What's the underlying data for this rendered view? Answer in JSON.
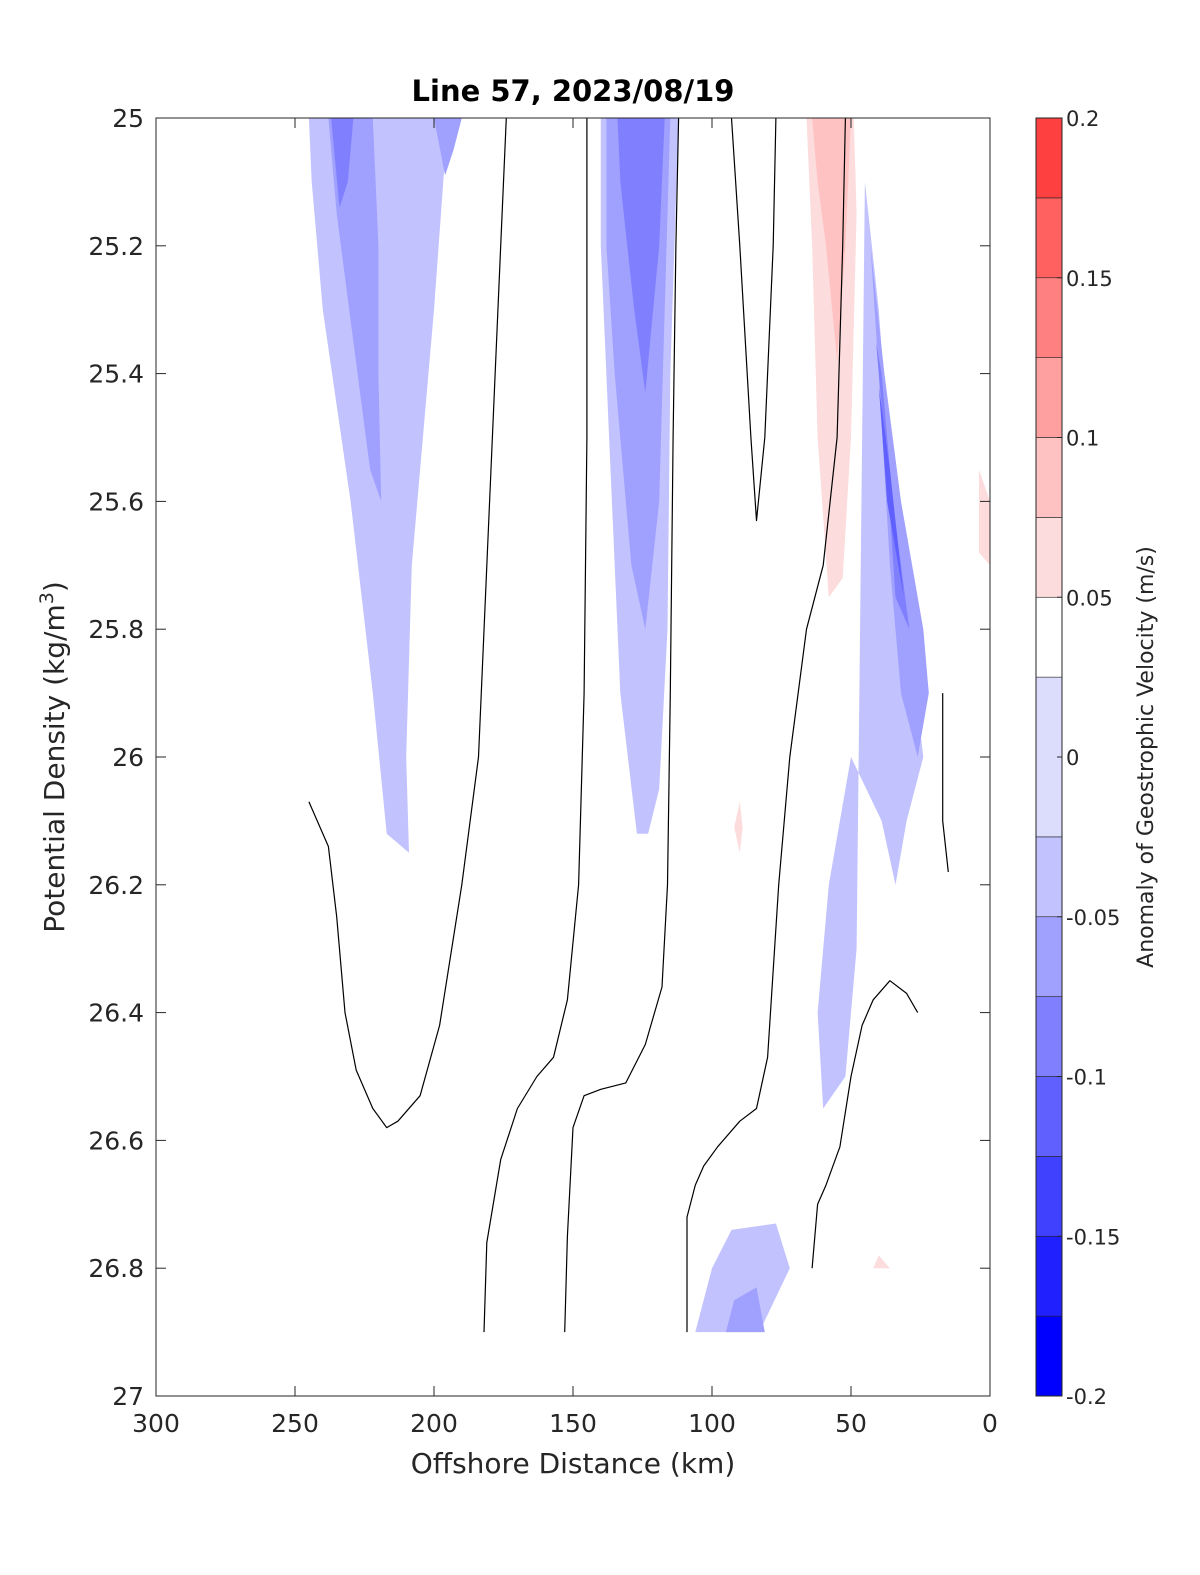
{
  "chart_data": {
    "type": "contourf",
    "title": "Line 57, 2023/08/19",
    "xlabel": "Offshore Distance (km)",
    "ylabel_main": "Potential Density (kg/m",
    "ylabel_sup": "3",
    "ylabel_close": ")",
    "xlim": [
      300,
      0
    ],
    "x_reversed": true,
    "ylim": [
      25,
      27
    ],
    "y_reversed": true,
    "xticks": [
      300,
      250,
      200,
      150,
      100,
      50,
      0
    ],
    "xtick_labels": [
      "300",
      "250",
      "200",
      "150",
      "100",
      "50",
      "0"
    ],
    "yticks": [
      25,
      25.2,
      25.4,
      25.6,
      25.8,
      26,
      26.2,
      26.4,
      26.6,
      26.8,
      27
    ],
    "ytick_labels": [
      "25",
      "25.2",
      "25.4",
      "25.6",
      "25.8",
      "26",
      "26.2",
      "26.4",
      "26.6",
      "26.8",
      "27"
    ],
    "colorbar": {
      "label": "Anomaly of Geostrophic Velocity (m/s)",
      "clim": [
        -0.2,
        0.2
      ],
      "levels": [
        -0.2,
        -0.175,
        -0.15,
        -0.125,
        -0.1,
        -0.075,
        -0.05,
        -0.025,
        0.025,
        0.05,
        0.075,
        0.1,
        0.125,
        0.15,
        0.175,
        0.2
      ],
      "band_colors": [
        "#0000ff",
        "#2020ff",
        "#4040ff",
        "#6060ff",
        "#8080ff",
        "#a0a0ff",
        "#c2c2ff",
        "#dcdcfc",
        "#ffffff",
        "#fcdcdc",
        "#ffc2c2",
        "#ffa0a0",
        "#ff8080",
        "#ff6060",
        "#ff4040",
        "#ff0000"
      ],
      "ticks": [
        -0.2,
        -0.15,
        -0.1,
        -0.05,
        0,
        0.05,
        0.1,
        0.15,
        0.2
      ],
      "tick_labels": [
        "-0.2",
        "-0.15",
        "-0.1",
        "-0.05",
        "0",
        "0.05",
        "0.1",
        "0.15",
        "0.2"
      ]
    },
    "filled_regions": [
      {
        "name": "neg-eddy-offshore",
        "level": -0.0375,
        "points": [
          [
            245,
            25
          ],
          [
            195,
            25
          ],
          [
            200,
            25.3
          ],
          [
            208,
            25.7
          ],
          [
            210,
            26.0
          ],
          [
            209,
            26.15
          ],
          [
            217,
            26.12
          ],
          [
            222,
            25.9
          ],
          [
            230,
            25.6
          ],
          [
            240,
            25.3
          ],
          [
            244,
            25.1
          ]
        ]
      },
      {
        "name": "neg-eddy-offshore-core",
        "level": -0.0625,
        "points": [
          [
            238,
            25
          ],
          [
            222,
            25
          ],
          [
            220,
            25.2
          ],
          [
            220,
            25.4
          ],
          [
            219,
            25.6
          ],
          [
            223,
            25.55
          ],
          [
            229,
            25.35
          ],
          [
            235,
            25.15
          ]
        ]
      },
      {
        "name": "neg-eddy-offshore-core2",
        "level": -0.0875,
        "points": [
          [
            237,
            25
          ],
          [
            229,
            25
          ],
          [
            231,
            25.1
          ],
          [
            234,
            25.14
          ]
        ]
      },
      {
        "name": "neg-eddy-offshore-lobe",
        "level": -0.0625,
        "points": [
          [
            200,
            25
          ],
          [
            190,
            25
          ],
          [
            193,
            25.05
          ],
          [
            196,
            25.09
          ]
        ]
      },
      {
        "name": "pos-band-150",
        "level": 0.0375,
        "points": [
          [
            162,
            25
          ],
          [
            150,
            25
          ],
          [
            151,
            25.3
          ],
          [
            150,
            25.7
          ],
          [
            152,
            25.9
          ],
          [
            156,
            25.9
          ],
          [
            159,
            25.6
          ],
          [
            161,
            25.3
          ]
        ]
      },
      {
        "name": "neg-band-125",
        "level": -0.0375,
        "points": [
          [
            140,
            25
          ],
          [
            112,
            25
          ],
          [
            115,
            25.4
          ],
          [
            116,
            25.8
          ],
          [
            119,
            26.05
          ],
          [
            123,
            26.12
          ],
          [
            127,
            26.12
          ],
          [
            133,
            25.9
          ],
          [
            137,
            25.5
          ],
          [
            140,
            25.2
          ]
        ]
      },
      {
        "name": "neg-band-125-core",
        "level": -0.0625,
        "points": [
          [
            138,
            25
          ],
          [
            115,
            25
          ],
          [
            117,
            25.3
          ],
          [
            119,
            25.6
          ],
          [
            124,
            25.8
          ],
          [
            129,
            25.7
          ],
          [
            135,
            25.4
          ],
          [
            138,
            25.2
          ]
        ]
      },
      {
        "name": "neg-band-125-core2",
        "level": -0.0875,
        "points": [
          [
            134,
            25
          ],
          [
            117,
            25
          ],
          [
            119,
            25.2
          ],
          [
            124,
            25.43
          ],
          [
            128,
            25.3
          ],
          [
            133,
            25.1
          ]
        ]
      },
      {
        "name": "pos-band-95",
        "level": 0.0375,
        "points": [
          [
            101,
            25.45
          ],
          [
            100,
            25.8
          ],
          [
            100,
            26.0
          ],
          [
            99,
            26.2
          ],
          [
            100,
            26.4
          ],
          [
            96,
            26.45
          ],
          [
            90,
            26.44
          ],
          [
            84,
            26.3
          ],
          [
            80,
            26.05
          ],
          [
            80,
            25.8
          ],
          [
            84,
            25.6
          ],
          [
            88,
            25.4
          ],
          [
            95,
            25.28
          ]
        ]
      },
      {
        "name": "pos-band-95-core",
        "level": 0.0625,
        "points": [
          [
            92,
            26.11
          ],
          [
            90,
            26.07
          ],
          [
            89,
            26.11
          ],
          [
            90,
            26.15
          ]
        ]
      },
      {
        "name": "pos-band-55",
        "level": 0.0375,
        "points": [
          [
            68,
            25
          ],
          [
            51,
            25
          ],
          [
            48,
            25.3
          ],
          [
            50,
            25.6
          ],
          [
            52,
            25.9
          ],
          [
            58,
            25.95
          ],
          [
            65,
            25.9
          ],
          [
            68,
            25.5
          ],
          [
            68,
            25.2
          ]
        ]
      },
      {
        "name": "pos-band-55-core",
        "level": 0.0625,
        "points": [
          [
            66,
            25
          ],
          [
            49,
            25
          ],
          [
            48,
            25.15
          ],
          [
            50,
            25.5
          ],
          [
            53,
            25.72
          ],
          [
            58,
            25.75
          ],
          [
            62,
            25.5
          ],
          [
            64,
            25.2
          ]
        ]
      },
      {
        "name": "pos-band-55-core2",
        "level": 0.0875,
        "points": [
          [
            64,
            25
          ],
          [
            50,
            25
          ],
          [
            52,
            25.2
          ],
          [
            55,
            25.38
          ],
          [
            59,
            25.2
          ],
          [
            62,
            25.1
          ]
        ]
      },
      {
        "name": "neg-coastal-wide",
        "level": -0.0375,
        "points": [
          [
            45,
            25.1
          ],
          [
            40,
            25.3
          ],
          [
            35,
            25.6
          ],
          [
            24,
            26.0
          ],
          [
            30,
            26.1
          ],
          [
            34,
            26.2
          ],
          [
            39,
            26.1
          ],
          [
            50,
            26.0
          ],
          [
            58,
            26.2
          ],
          [
            62,
            26.4
          ],
          [
            60,
            26.55
          ],
          [
            52,
            26.5
          ],
          [
            48,
            26.3
          ]
        ]
      },
      {
        "name": "neg-coastal-mid",
        "level": -0.0625,
        "points": [
          [
            43,
            25.2
          ],
          [
            38,
            25.4
          ],
          [
            32,
            25.6
          ],
          [
            24,
            25.8
          ],
          [
            22,
            25.9
          ],
          [
            26,
            26.0
          ],
          [
            32,
            25.9
          ],
          [
            36,
            25.7
          ],
          [
            40,
            25.4
          ]
        ]
      },
      {
        "name": "neg-coastal-core",
        "level": -0.0875,
        "points": [
          [
            41,
            25.35
          ],
          [
            37,
            25.55
          ],
          [
            34,
            25.75
          ],
          [
            29,
            25.8
          ],
          [
            35,
            25.6
          ],
          [
            39,
            25.4
          ]
        ]
      },
      {
        "name": "neg-coastal-jet",
        "level": -0.1125,
        "points": [
          [
            40,
            25.42
          ],
          [
            37,
            25.6
          ],
          [
            31,
            25.75
          ],
          [
            36,
            25.55
          ]
        ]
      },
      {
        "name": "pos-nearshore-a",
        "level": 0.0375,
        "points": [
          [
            12,
            25.7
          ],
          [
            8,
            25.75
          ],
          [
            5,
            25.9
          ],
          [
            6,
            26.05
          ],
          [
            10,
            26.0
          ],
          [
            12,
            25.8
          ]
        ]
      },
      {
        "name": "pos-nearshore-b",
        "level": 0.0625,
        "points": [
          [
            4,
            25.55
          ],
          [
            0,
            25.6
          ],
          [
            0,
            25.7
          ],
          [
            4,
            25.68
          ]
        ]
      },
      {
        "name": "pos-deep-offshore",
        "level": 0.0375,
        "points": [
          [
            242,
            26.7
          ],
          [
            232,
            26.65
          ],
          [
            218,
            26.8
          ],
          [
            208,
            26.81
          ],
          [
            200,
            26.86
          ],
          [
            195,
            26.9
          ],
          [
            240,
            26.9
          ]
        ]
      },
      {
        "name": "pos-deep-125",
        "level": 0.0375,
        "points": [
          [
            133,
            26.78
          ],
          [
            128,
            26.77
          ],
          [
            121,
            26.8
          ],
          [
            117,
            26.9
          ],
          [
            137,
            26.9
          ]
        ]
      },
      {
        "name": "neg-deep-95",
        "level": -0.0375,
        "points": [
          [
            106,
            26.9
          ],
          [
            100,
            26.8
          ],
          [
            93,
            26.74
          ],
          [
            77,
            26.73
          ],
          [
            72,
            26.8
          ],
          [
            83,
            26.9
          ]
        ]
      },
      {
        "name": "neg-deep-95-core",
        "level": -0.0625,
        "points": [
          [
            95,
            26.9
          ],
          [
            92,
            26.85
          ],
          [
            84,
            26.83
          ],
          [
            81,
            26.9
          ]
        ]
      },
      {
        "name": "pos-deep-coastal",
        "level": 0.0375,
        "points": [
          [
            55,
            26.75
          ],
          [
            51,
            26.68
          ],
          [
            42,
            26.62
          ],
          [
            30,
            26.55
          ],
          [
            33,
            26.65
          ],
          [
            40,
            26.73
          ],
          [
            48,
            26.8
          ]
        ]
      },
      {
        "name": "pos-deep-coastal-core",
        "level": 0.0625,
        "points": [
          [
            40,
            26.78
          ],
          [
            36,
            26.8
          ],
          [
            42,
            26.8
          ]
        ]
      }
    ],
    "zero_contours": [
      {
        "name": "zero-line-offshore",
        "points": [
          [
            245,
            26.07
          ],
          [
            238,
            26.14
          ],
          [
            235,
            26.25
          ],
          [
            232,
            26.4
          ],
          [
            228,
            26.49
          ],
          [
            222,
            26.55
          ],
          [
            217,
            26.58
          ],
          [
            213,
            26.57
          ],
          [
            205,
            26.53
          ],
          [
            198,
            26.42
          ],
          [
            190,
            26.2
          ],
          [
            184,
            26.0
          ],
          [
            180,
            25.6
          ],
          [
            176,
            25.2
          ],
          [
            174,
            25.0
          ]
        ]
      },
      {
        "name": "zero-line-150",
        "points": [
          [
            182,
            26.9
          ],
          [
            181,
            26.76
          ],
          [
            176,
            26.63
          ],
          [
            170,
            26.55
          ],
          [
            163,
            26.5
          ],
          [
            157,
            26.47
          ],
          [
            152,
            26.38
          ],
          [
            148,
            26.2
          ],
          [
            146,
            25.9
          ],
          [
            145,
            25.5
          ],
          [
            145,
            25.2
          ],
          [
            145,
            25.0
          ]
        ]
      },
      {
        "name": "zero-line-125",
        "points": [
          [
            153,
            26.9
          ],
          [
            152,
            26.75
          ],
          [
            150,
            26.58
          ],
          [
            146,
            26.53
          ],
          [
            140,
            26.52
          ],
          [
            131,
            26.51
          ],
          [
            124,
            26.45
          ],
          [
            118,
            26.36
          ],
          [
            116,
            26.2
          ],
          [
            115,
            25.9
          ],
          [
            114,
            25.5
          ],
          [
            113,
            25.2
          ],
          [
            112,
            25.0
          ]
        ]
      },
      {
        "name": "zero-line-100",
        "points": [
          [
            109,
            26.9
          ],
          [
            109,
            26.72
          ],
          [
            106,
            26.67
          ],
          [
            103,
            26.64
          ],
          [
            98,
            26.61
          ],
          [
            90,
            26.57
          ],
          [
            84,
            26.55
          ],
          [
            80,
            26.47
          ],
          [
            76,
            26.2
          ],
          [
            72,
            26.0
          ],
          [
            66,
            25.8
          ],
          [
            60,
            25.7
          ],
          [
            55,
            25.5
          ],
          [
            53,
            25.2
          ],
          [
            52,
            25.0
          ]
        ]
      },
      {
        "name": "zero-line-peak",
        "points": [
          [
            93,
            25.0
          ],
          [
            90,
            25.2
          ],
          [
            86,
            25.5
          ],
          [
            84,
            25.63
          ],
          [
            81,
            25.5
          ],
          [
            78,
            25.2
          ],
          [
            77,
            25.0
          ]
        ]
      },
      {
        "name": "zero-line-coastal",
        "points": [
          [
            64,
            26.8
          ],
          [
            62,
            26.7
          ],
          [
            59,
            26.67
          ],
          [
            54,
            26.61
          ],
          [
            50,
            26.5
          ],
          [
            46,
            26.42
          ],
          [
            42,
            26.38
          ],
          [
            36,
            26.35
          ],
          [
            30,
            26.37
          ],
          [
            26,
            26.4
          ]
        ]
      },
      {
        "name": "zero-line-nearshore",
        "points": [
          [
            17,
            25.9
          ],
          [
            17,
            26.1
          ],
          [
            15,
            26.18
          ]
        ]
      }
    ]
  }
}
